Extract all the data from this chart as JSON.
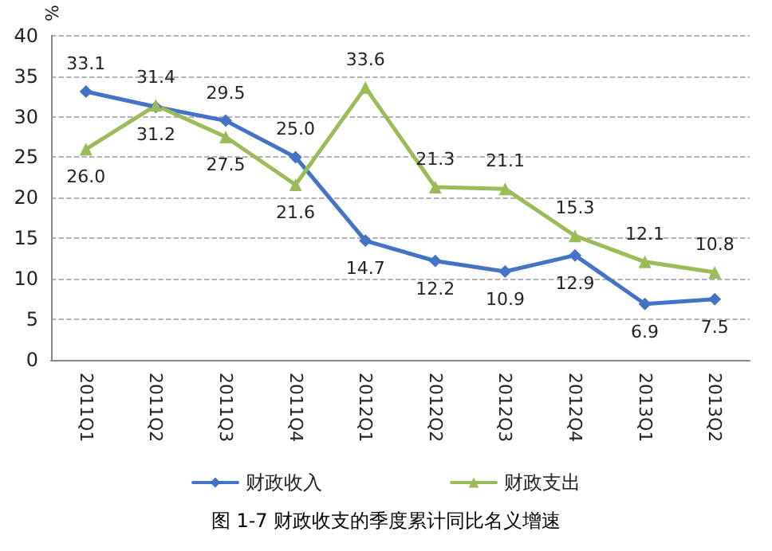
{
  "chart_data": {
    "type": "line",
    "title": "图 1-7 财政收支的季度累计同比名义增速",
    "ylabel": "%",
    "categories": [
      "2011Q1",
      "2011Q2",
      "2011Q3",
      "2011Q4",
      "2012Q1",
      "2012Q2",
      "2012Q3",
      "2012Q4",
      "2013Q1",
      "2013Q2"
    ],
    "series": [
      {
        "name": "财政收入",
        "color": "#4472c4",
        "marker": "diamond",
        "values": [
          33.1,
          31.2,
          29.5,
          25.0,
          14.7,
          12.2,
          10.9,
          12.9,
          6.9,
          7.5
        ],
        "value_labels": [
          "33.1",
          "31.2",
          "29.5",
          "25.0",
          "14.7",
          "12.2",
          "10.9",
          "12.9",
          "6.9",
          "7.5"
        ]
      },
      {
        "name": "财政支出",
        "color": "#9bbb59",
        "marker": "triangle",
        "values": [
          26.0,
          31.4,
          27.5,
          21.6,
          33.6,
          21.3,
          21.1,
          15.3,
          12.1,
          10.8
        ],
        "value_labels": [
          "26.0",
          "31.4",
          "27.5",
          "21.6",
          "33.6",
          "21.3",
          "21.1",
          "15.3",
          "12.1",
          "10.8"
        ]
      }
    ],
    "ylim": [
      0,
      40
    ],
    "yticks": [
      0,
      5,
      10,
      15,
      20,
      25,
      30,
      35,
      40
    ],
    "grid": "y",
    "legend": "bottom",
    "line_style": "solid"
  }
}
